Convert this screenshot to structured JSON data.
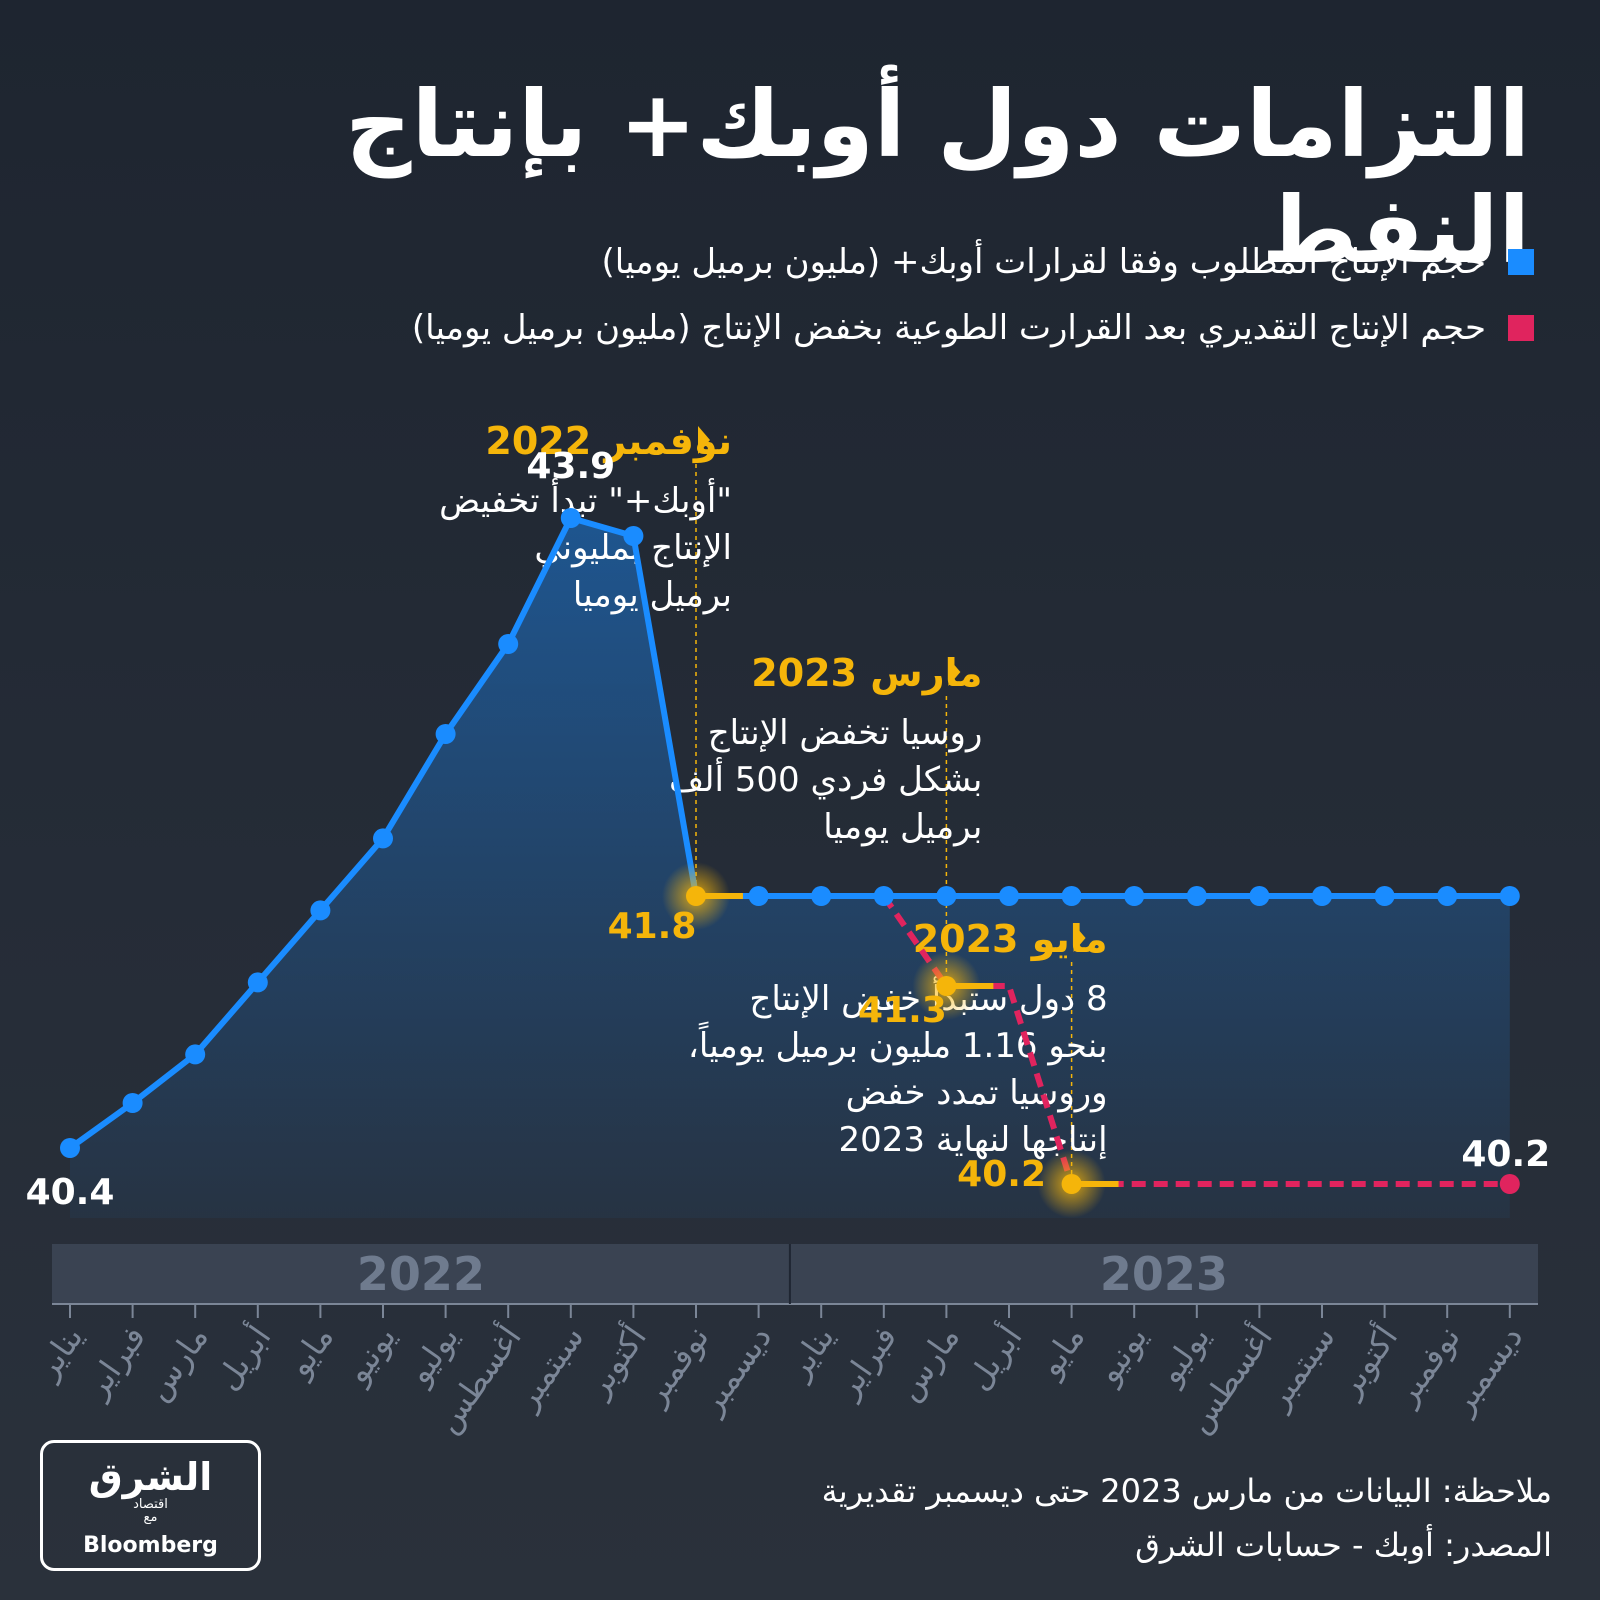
{
  "title": "التزامات دول أوبك+ بإنتاج النفط",
  "legend": [
    {
      "label": "حجم الإنتاج المطلوب وفقا لقرارات أوبك+ (مليون برميل يوميا)",
      "color": "#1a8cff"
    },
    {
      "label": "حجم الإنتاج التقديري بعد القرارت الطوعية بخفض الإنتاج (مليون برميل يوميا)",
      "color": "#e0245e"
    }
  ],
  "colors": {
    "accent": "#f5b50a",
    "required": "#1a8cff",
    "estimated": "#e0245e",
    "axis": "#7b8697"
  },
  "chart_data": {
    "type": "line",
    "categories": [
      "يناير",
      "فبراير",
      "مارس",
      "أبريل",
      "مايو",
      "يونيو",
      "يوليو",
      "أغسطس",
      "سبتمبر",
      "أكتوبر",
      "نوفمبر",
      "ديسمبر",
      "يناير",
      "فبراير",
      "مارس",
      "أبريل",
      "مايو",
      "يونيو",
      "يوليو",
      "أغسطس",
      "سبتمبر",
      "أكتوبر",
      "نوفمبر",
      "ديسمبر"
    ],
    "years": [
      {
        "label": "2022",
        "months": 12
      },
      {
        "label": "2023",
        "months": 12
      }
    ],
    "series": [
      {
        "values": [
          40.4,
          40.65,
          40.92,
          41.32,
          41.72,
          42.12,
          42.7,
          43.2,
          43.9,
          43.8,
          41.8,
          41.8,
          41.8,
          41.8,
          41.8,
          41.8,
          41.8,
          41.8,
          41.8,
          41.8,
          41.8,
          41.8,
          41.8,
          41.8
        ]
      },
      {
        "values": [
          null,
          null,
          null,
          null,
          null,
          null,
          null,
          null,
          null,
          null,
          null,
          null,
          null,
          41.8,
          41.3,
          41.3,
          40.2,
          40.2,
          40.2,
          40.2,
          40.2,
          40.2,
          40.2,
          40.2
        ]
      }
    ],
    "data_labels": [
      {
        "series": 0,
        "index": 0,
        "text": "40.4"
      },
      {
        "series": 0,
        "index": 8,
        "text": "43.9"
      },
      {
        "series": 0,
        "index": 10,
        "text": "41.8"
      },
      {
        "series": 1,
        "index": 14,
        "text": "41.3"
      },
      {
        "series": 1,
        "index": 16,
        "text": "40.2"
      },
      {
        "series": 1,
        "index": 23,
        "text": "40.2"
      }
    ],
    "highlights": [
      10,
      14,
      16
    ],
    "annotations": [
      {
        "index": 10,
        "title": "نوفمبر 2022",
        "lines": [
          "\"أوبك+\" تبدأ تخفيض",
          "الإنتاج بمليوني",
          "برميل يوميا"
        ]
      },
      {
        "index": 14,
        "title": "مارس 2023",
        "lines": [
          "روسيا تخفض الإنتاج",
          "بشكل فردي 500 ألف",
          "برميل يوميا"
        ]
      },
      {
        "index": 16,
        "title": "مايو 2023",
        "lines": [
          "8 دول ستبدأ خفض الإنتاج",
          "بنحو 1.16 مليون برميل يومياً،",
          "وروسيا تمدد خفض",
          "إنتاجها لنهاية 2023"
        ]
      }
    ]
  },
  "notes": [
    "ملاحظة: البيانات من مارس 2023 حتى ديسمبر تقديرية",
    "المصدر: أوبك - حسابات الشرق"
  ],
  "logo": {
    "name": "الشرق",
    "sub": "اقتصاد",
    "partner": "مع",
    "brand": "Bloomberg"
  }
}
